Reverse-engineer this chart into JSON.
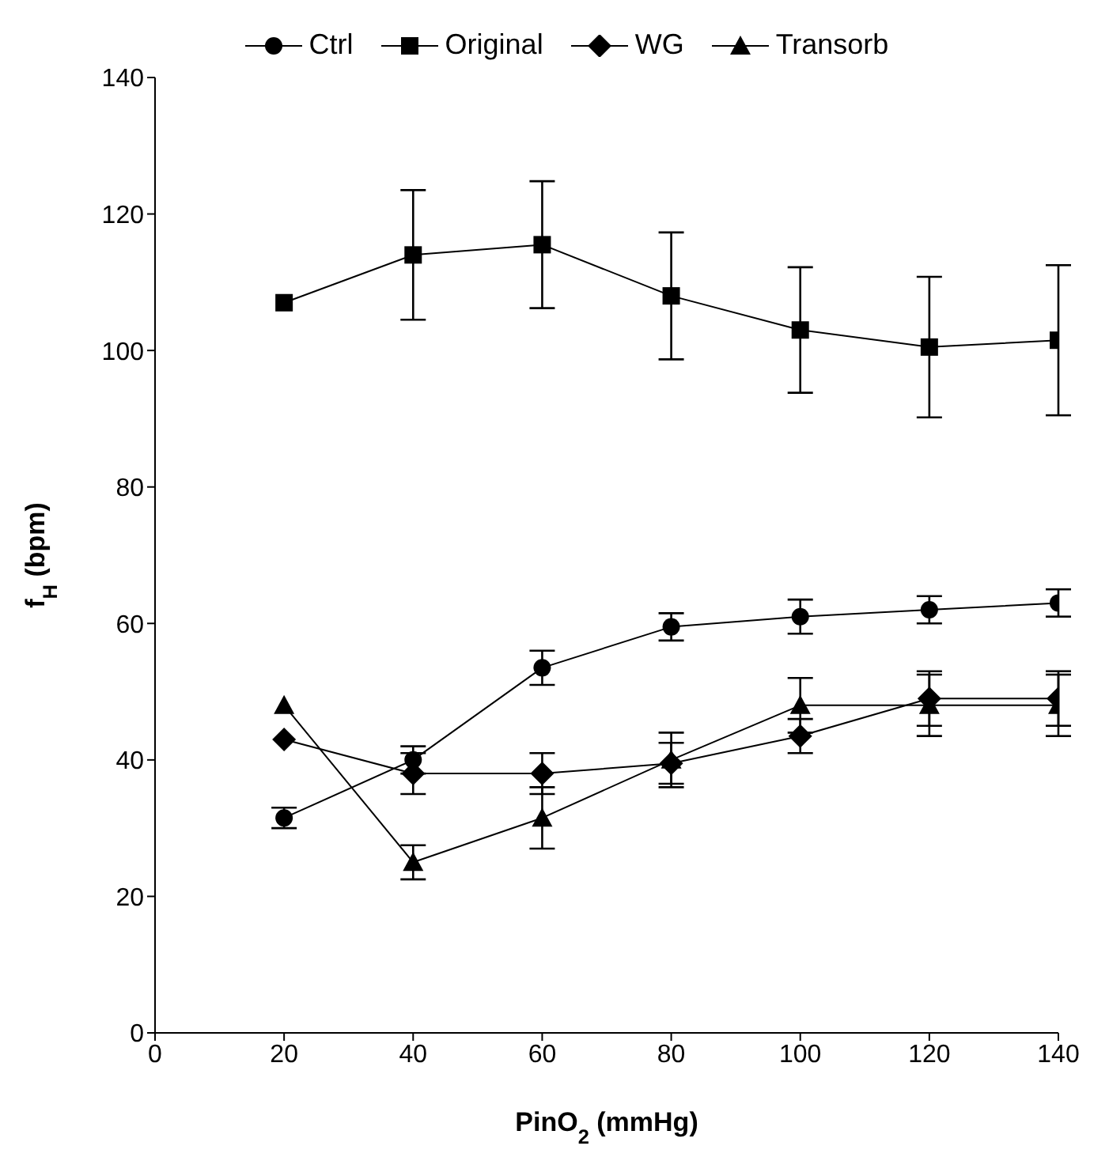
{
  "chart_data": {
    "type": "line",
    "xlabel": "PinO$_{2}$ (mmHg)",
    "ylabel": "f$_{H}$ (bpm)",
    "x": [
      20,
      40,
      60,
      80,
      100,
      120,
      140
    ],
    "xlim": [
      0,
      140
    ],
    "xticks": [
      0,
      20,
      40,
      60,
      80,
      100,
      120,
      140
    ],
    "ylim": [
      0,
      140
    ],
    "yticks": [
      0,
      20,
      40,
      60,
      80,
      100,
      120,
      140
    ],
    "grid": false,
    "legend": "top",
    "line_style": "solid",
    "series": [
      {
        "name": "Ctrl",
        "color": "#000000",
        "marker": "circle",
        "values": [
          31.5,
          40,
          53.5,
          59.5,
          61,
          62,
          63
        ],
        "errors": [
          1.5,
          2,
          2.5,
          2,
          2.5,
          2,
          2
        ]
      },
      {
        "name": "Original",
        "color": "#000000",
        "marker": "square",
        "values": [
          107,
          114,
          115.5,
          108,
          103,
          100.5,
          101.5
        ],
        "errors": [
          null,
          9.5,
          9.3,
          9.3,
          9.2,
          10.3,
          11
        ]
      },
      {
        "name": "WG",
        "color": "#000000",
        "marker": "diamond",
        "values": [
          43,
          38,
          38,
          39.5,
          43.5,
          49,
          49
        ],
        "errors": [
          null,
          3,
          3,
          3,
          2.5,
          4,
          4
        ]
      },
      {
        "name": "Transorb",
        "color": "#000000",
        "marker": "triangle",
        "values": [
          48,
          25,
          31.5,
          40,
          48,
          48,
          48
        ],
        "errors": [
          null,
          2.5,
          4.5,
          4,
          4,
          4.5,
          4.5
        ]
      }
    ]
  }
}
